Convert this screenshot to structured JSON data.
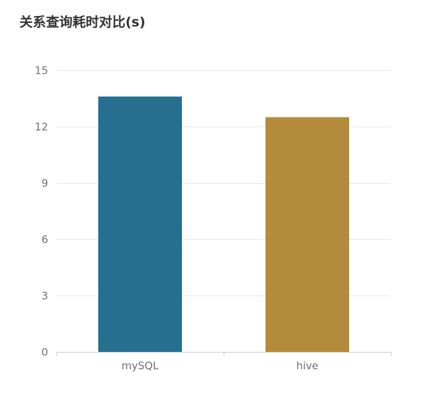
{
  "chart_data": {
    "type": "bar",
    "title": "关系查询耗时对比(s)",
    "categories": [
      "mySQL",
      "hive"
    ],
    "values": [
      13.6,
      12.5
    ],
    "colors": [
      "#25708f",
      "#b38b3a"
    ],
    "yticks": [
      "0",
      "3",
      "6",
      "9",
      "12",
      "15"
    ],
    "ylim": [
      0,
      15
    ],
    "grid": true,
    "legend": "none"
  },
  "colors": {
    "grid": "#e0e6f1",
    "axis": "#c9ccd4",
    "text": "#6e7079",
    "title": "#333333"
  }
}
